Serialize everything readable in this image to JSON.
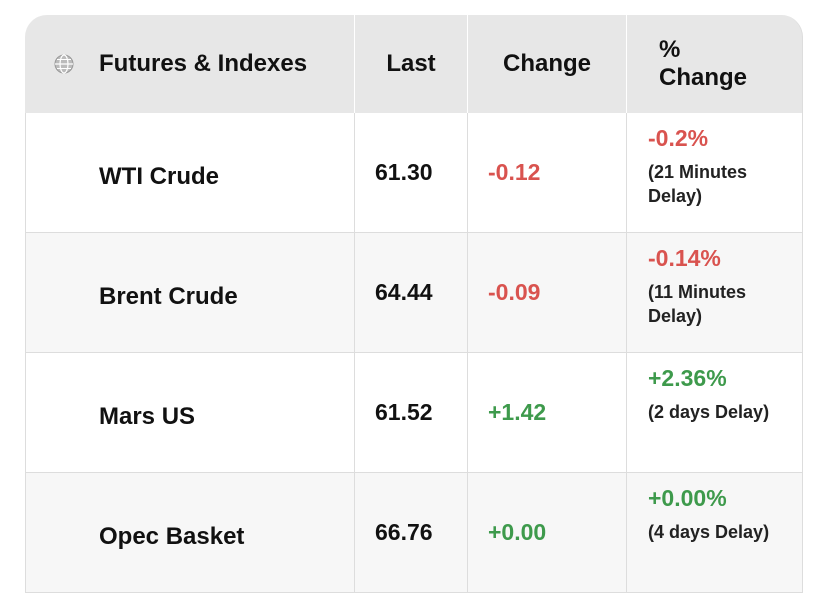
{
  "table": {
    "header": [
      "Futures & Indexes",
      "Last",
      "Change",
      "% Change"
    ],
    "rows": [
      {
        "name": "WTI Crude",
        "last": "61.30",
        "change": "-0.12",
        "pct_change": "-0.2%",
        "delay": "(21 Minutes Delay)"
      },
      {
        "name": "Brent Crude",
        "last": "64.44",
        "change": "-0.09",
        "pct_change": "-0.14%",
        "delay": "(11 Minutes Delay)"
      },
      {
        "name": "Mars US",
        "last": "61.52",
        "change": "+1.42",
        "pct_change": "+2.36%",
        "delay": "(2 days Delay)"
      },
      {
        "name": "Opec Basket",
        "last": "66.76",
        "change": "+0.00",
        "pct_change": "+0.00%",
        "delay": "(4 days Delay)"
      }
    ],
    "colors": {
      "down": "#d9534f",
      "up": "#3e9a4c"
    }
  }
}
